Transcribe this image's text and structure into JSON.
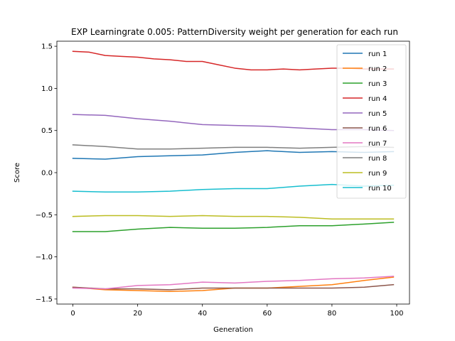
{
  "chart_data": {
    "type": "line",
    "title": "EXP Learningrate 0.005: PatternDiversity weight per generation for each run",
    "xlabel": "Generation",
    "ylabel": "Score",
    "xlim": [
      -4.95,
      103.95
    ],
    "ylim": [
      -1.56,
      1.56
    ],
    "xticks": [
      0,
      20,
      40,
      60,
      80,
      100
    ],
    "xtick_labels": [
      "0",
      "20",
      "40",
      "60",
      "80",
      "100"
    ],
    "yticks": [
      -1.5,
      -1.0,
      -0.5,
      0.0,
      0.5,
      1.0,
      1.5
    ],
    "ytick_labels": [
      "−1.5",
      "−1.0",
      "−0.5",
      "0.0",
      "0.5",
      "1.0",
      "1.5"
    ],
    "legend_position": "top-right",
    "grid": false,
    "series": [
      {
        "name": "run 1",
        "color": "#1f77b4",
        "x": [
          0,
          10,
          20,
          30,
          40,
          50,
          60,
          70,
          80,
          90,
          99
        ],
        "y": [
          0.17,
          0.16,
          0.19,
          0.2,
          0.21,
          0.24,
          0.26,
          0.24,
          0.25,
          0.24,
          0.25
        ]
      },
      {
        "name": "run 2",
        "color": "#ff7f0e",
        "x": [
          0,
          10,
          20,
          30,
          40,
          50,
          60,
          70,
          80,
          90,
          99
        ],
        "y": [
          -1.36,
          -1.39,
          -1.4,
          -1.41,
          -1.4,
          -1.37,
          -1.37,
          -1.35,
          -1.33,
          -1.28,
          -1.24
        ]
      },
      {
        "name": "run 3",
        "color": "#2ca02c",
        "x": [
          0,
          10,
          20,
          30,
          40,
          50,
          60,
          70,
          80,
          90,
          99
        ],
        "y": [
          -0.7,
          -0.7,
          -0.67,
          -0.65,
          -0.66,
          -0.66,
          -0.65,
          -0.63,
          -0.63,
          -0.61,
          -0.59
        ]
      },
      {
        "name": "run 4",
        "color": "#d62728",
        "x": [
          0,
          5,
          10,
          15,
          20,
          25,
          30,
          35,
          40,
          45,
          50,
          55,
          60,
          65,
          70,
          75,
          80,
          85,
          90,
          95,
          99
        ],
        "y": [
          1.44,
          1.43,
          1.39,
          1.38,
          1.37,
          1.35,
          1.34,
          1.32,
          1.32,
          1.28,
          1.24,
          1.22,
          1.22,
          1.23,
          1.22,
          1.23,
          1.24,
          1.24,
          1.23,
          1.23,
          1.23
        ]
      },
      {
        "name": "run 5",
        "color": "#9467bd",
        "x": [
          0,
          10,
          20,
          30,
          40,
          50,
          60,
          70,
          80,
          90,
          99
        ],
        "y": [
          0.69,
          0.68,
          0.64,
          0.61,
          0.57,
          0.56,
          0.55,
          0.53,
          0.51,
          0.51,
          0.5
        ]
      },
      {
        "name": "run 6",
        "color": "#8c564b",
        "x": [
          0,
          10,
          20,
          30,
          40,
          50,
          60,
          70,
          80,
          90,
          99
        ],
        "y": [
          -1.36,
          -1.38,
          -1.38,
          -1.39,
          -1.37,
          -1.37,
          -1.37,
          -1.37,
          -1.37,
          -1.36,
          -1.33
        ]
      },
      {
        "name": "run 7",
        "color": "#e377c2",
        "x": [
          0,
          10,
          20,
          30,
          40,
          50,
          60,
          70,
          80,
          90,
          99
        ],
        "y": [
          -1.37,
          -1.38,
          -1.34,
          -1.33,
          -1.3,
          -1.31,
          -1.29,
          -1.28,
          -1.26,
          -1.25,
          -1.23
        ]
      },
      {
        "name": "run 8",
        "color": "#7f7f7f",
        "x": [
          0,
          10,
          20,
          30,
          40,
          50,
          60,
          70,
          80,
          90,
          99
        ],
        "y": [
          0.33,
          0.31,
          0.28,
          0.28,
          0.29,
          0.3,
          0.3,
          0.29,
          0.3,
          0.31,
          0.3
        ]
      },
      {
        "name": "run 9",
        "color": "#bcbd22",
        "x": [
          0,
          10,
          20,
          30,
          40,
          50,
          60,
          70,
          80,
          90,
          99
        ],
        "y": [
          -0.52,
          -0.51,
          -0.51,
          -0.52,
          -0.51,
          -0.52,
          -0.52,
          -0.53,
          -0.55,
          -0.55,
          -0.55
        ]
      },
      {
        "name": "run 10",
        "color": "#17becf",
        "x": [
          0,
          10,
          20,
          30,
          40,
          50,
          60,
          70,
          80,
          90,
          99
        ],
        "y": [
          -0.22,
          -0.23,
          -0.23,
          -0.22,
          -0.2,
          -0.19,
          -0.19,
          -0.16,
          -0.14,
          -0.16,
          -0.15
        ]
      }
    ]
  }
}
